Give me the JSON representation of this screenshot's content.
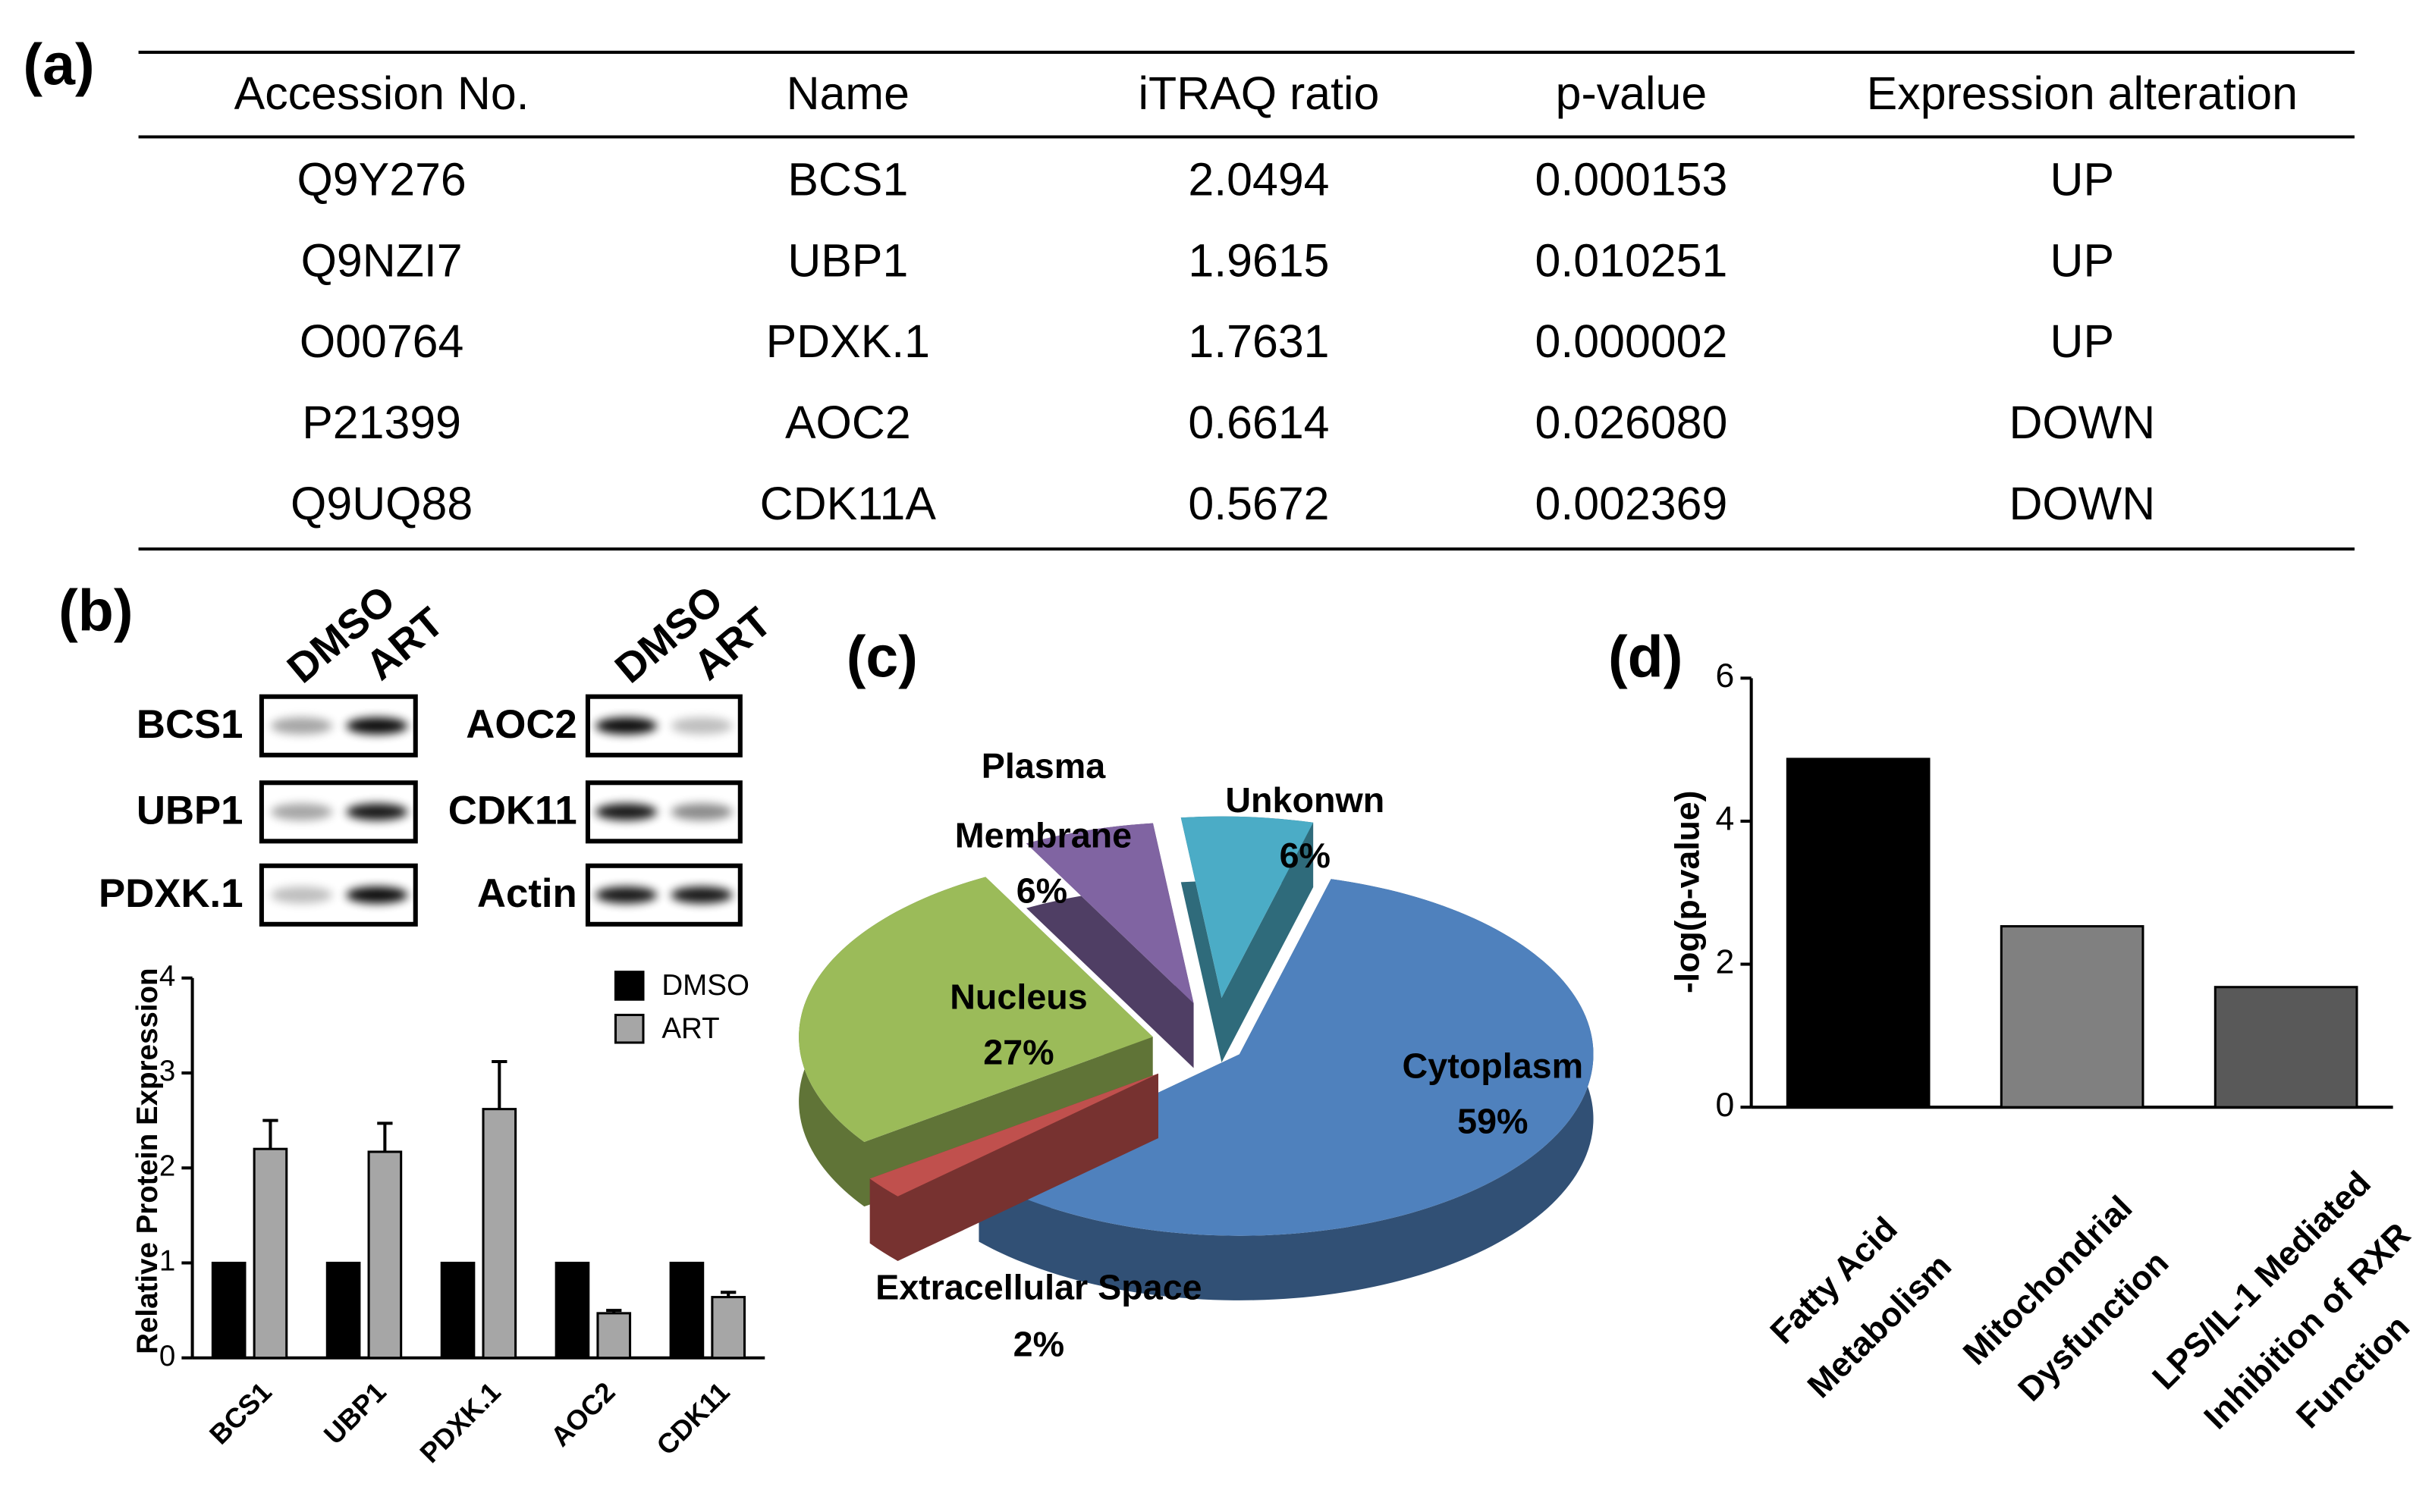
{
  "panel_labels": [
    "(a)",
    "(b)",
    "(c)",
    "(d)"
  ],
  "table": {
    "header": [
      "Accession No.",
      "Name",
      "iTRAQ ratio",
      "p-value",
      "Expression alteration"
    ],
    "rows": [
      [
        "Q9Y276",
        "BCS1",
        "2.0494",
        "0.000153",
        "UP"
      ],
      [
        "Q9NZI7",
        "UBP1",
        "1.9615",
        "0.010251",
        "UP"
      ],
      [
        "O00764",
        "PDXK.1",
        "1.7631",
        "0.000002",
        "UP"
      ],
      [
        "P21399",
        "AOC2",
        "0.6614",
        "0.026080",
        "DOWN"
      ],
      [
        "Q9UQ88",
        "CDK11A",
        "0.5672",
        "0.002369",
        "DOWN"
      ]
    ]
  },
  "blot": {
    "left_columns": [
      "DMSO",
      "ART"
    ],
    "right_columns": [
      "DMSO",
      "ART"
    ],
    "left_rows": [
      "BCS1",
      "UBP1",
      "PDXK.1"
    ],
    "right_rows": [
      "AOC2",
      "CDK11",
      "Actin"
    ]
  },
  "chart_data": [
    {
      "type": "bar",
      "ylabel": "Relative Protein Expression",
      "categories": [
        "BCS1",
        "UBP1",
        "PDXK.1",
        "AOC2",
        "CDK11"
      ],
      "series": [
        {
          "name": "DMSO",
          "color": "#000000",
          "values": [
            1,
            1,
            1,
            1,
            1
          ]
        },
        {
          "name": "ART",
          "color": "#a6a6a6",
          "values": [
            2.2,
            2.17,
            2.62,
            0.47,
            0.64
          ],
          "errors": [
            0.3,
            0.3,
            0.5,
            0.03,
            0.05
          ]
        }
      ],
      "ylim": [
        0,
        4
      ],
      "yticks": [
        0,
        1,
        2,
        3,
        4
      ],
      "legend": "top-right"
    },
    {
      "type": "pie",
      "categories": [
        "Cytoplasm",
        "Extracellular Space",
        "Nucleus",
        "Plasma Membrane",
        "Unkonwn"
      ],
      "values": [
        59,
        2,
        27,
        6,
        6
      ],
      "value_labels": [
        "59%",
        "2%",
        "27%",
        "6%",
        "6%"
      ],
      "colors": [
        "#4f81bd",
        "#c0504d",
        "#9bbb59",
        "#8064a2",
        "#4bacc6"
      ]
    },
    {
      "type": "bar",
      "ylabel": "-log(p-value)",
      "categories": [
        "Fatty Acid Metabolism",
        "Mitochondrial Dysfunction",
        "LPS/IL-1 Mediated Inhibition of RXR Function"
      ],
      "values": [
        4.87,
        2.53,
        1.68
      ],
      "colors": [
        "#000000",
        "#808080",
        "#595959"
      ],
      "ylim": [
        0,
        6
      ],
      "yticks": [
        0,
        2,
        4,
        6
      ]
    }
  ]
}
